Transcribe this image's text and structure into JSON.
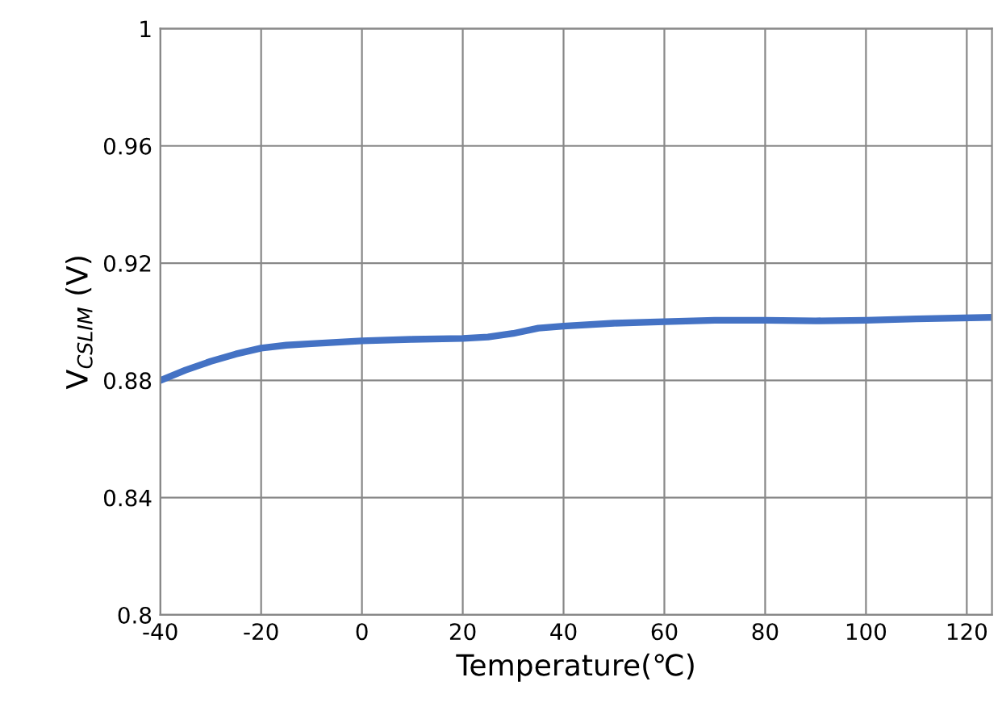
{
  "chart_data": {
    "type": "line",
    "xlabel": "Temperature(℃)",
    "ylabel": "V$_{CSLIM}$ (V)",
    "x": [
      -40,
      -35,
      -30,
      -25,
      -20,
      -15,
      -10,
      0,
      10,
      20,
      25,
      30,
      35,
      40,
      50,
      60,
      70,
      80,
      90,
      100,
      110,
      125
    ],
    "series": [
      {
        "color": "#4472c4",
        "values": [
          0.88,
          0.8835,
          0.8865,
          0.889,
          0.891,
          0.892,
          0.8925,
          0.8935,
          0.894,
          0.8943,
          0.8948,
          0.896,
          0.8978,
          0.8985,
          0.8995,
          0.9,
          0.9005,
          0.9005,
          0.9003,
          0.9005,
          0.901,
          0.9015
        ]
      }
    ],
    "xlim": [
      -40,
      125
    ],
    "xticks": [
      -40,
      -20,
      0,
      20,
      40,
      60,
      80,
      100,
      120
    ],
    "ylim": [
      0.8,
      1
    ],
    "yticks": [
      0.8,
      0.84,
      0.88,
      0.92,
      0.96,
      1
    ],
    "grid": true,
    "legend": false,
    "marker": "none",
    "line_style": "solid"
  }
}
